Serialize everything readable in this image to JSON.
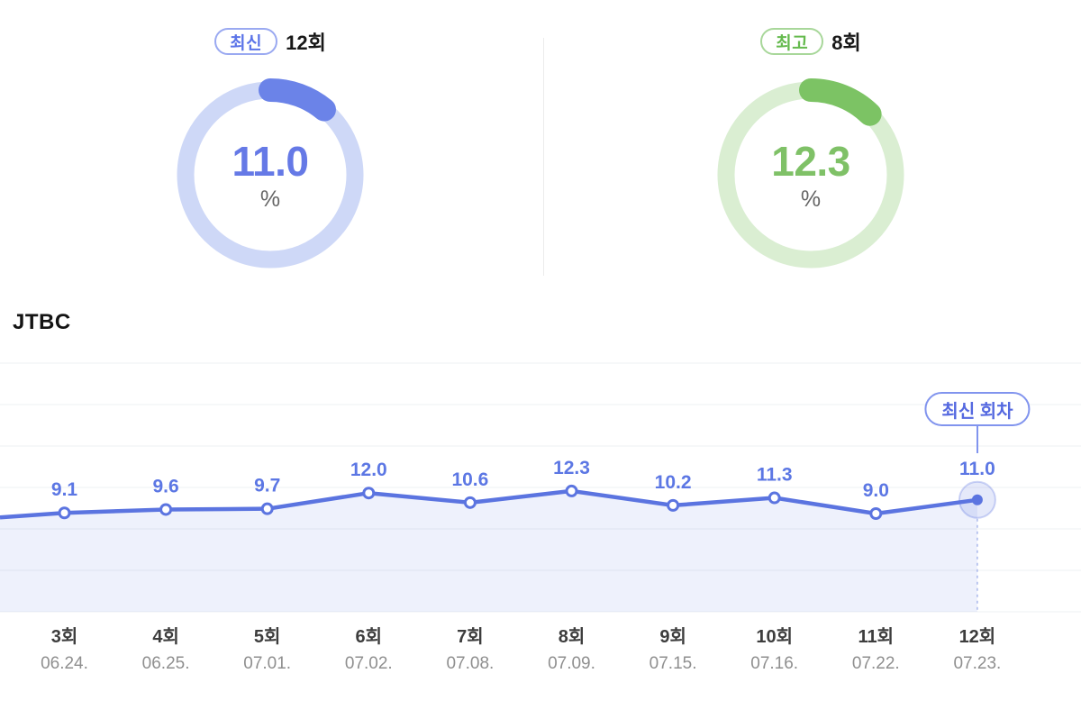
{
  "summary_cards": {
    "latest": {
      "badge_label": "최신",
      "episode_label": "12회",
      "value": "11.0",
      "unit": "%",
      "percent": 11.0,
      "accent": "#6b83e8",
      "track": "#ced8f7",
      "value_color": "#6579e6",
      "badge_text_color": "#5b74e8",
      "badge_border_color": "#9aa9f1"
    },
    "best": {
      "badge_label": "최고",
      "episode_label": "8회",
      "value": "12.3",
      "unit": "%",
      "percent": 12.3,
      "accent": "#7cc364",
      "track": "#daeed2",
      "value_color": "#7fc167",
      "badge_text_color": "#65ba4e",
      "badge_border_color": "#a8d79a"
    }
  },
  "channel_label": "JTBC",
  "chart_data": {
    "type": "line",
    "series_label": "JTBC",
    "unit": "%",
    "categories": [
      "3회",
      "4회",
      "5회",
      "6회",
      "7회",
      "8회",
      "9회",
      "10회",
      "11회",
      "12회"
    ],
    "dates": [
      "06.24.",
      "06.25.",
      "07.01.",
      "07.02.",
      "07.08.",
      "07.09.",
      "07.15.",
      "07.16.",
      "07.22.",
      "07.23."
    ],
    "values": [
      9.1,
      9.6,
      9.7,
      12.0,
      10.6,
      12.3,
      10.2,
      11.3,
      9.0,
      11.0
    ],
    "annotation": {
      "label": "최신 회차",
      "target_index": 9
    },
    "highlight_last": true,
    "partial_left": true,
    "grid": "horizontal",
    "legend": "none",
    "colors": {
      "line": "#5b74e0",
      "area": "rgba(92,116,224,0.10)",
      "point_fill": "#ffffff",
      "value_label": "#5c77e4",
      "grid": "#eef0f3",
      "dash": "#a9b7ec",
      "halo_fill": "rgba(92,116,224,0.16)",
      "halo_ring": "rgba(92,116,224,0.30)"
    }
  }
}
